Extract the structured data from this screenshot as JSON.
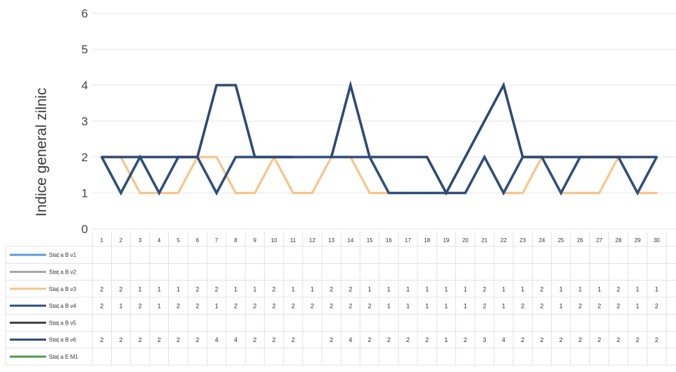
{
  "chart_data": {
    "type": "line",
    "ylabel": "Indice general zilnic",
    "ylim": [
      0,
      6
    ],
    "yticks": [
      0,
      1,
      2,
      3,
      4,
      5,
      6
    ],
    "grid": true,
    "legend": "data-table-left",
    "x": [
      "1",
      "2",
      "3",
      "4",
      "5",
      "6",
      "7",
      "8",
      "9",
      "10",
      "11",
      "12",
      "13",
      "14",
      "15",
      "16",
      "17",
      "18",
      "19",
      "20",
      "21",
      "22",
      "23",
      "24",
      "25",
      "26",
      "27",
      "28",
      "29",
      "30"
    ],
    "series": [
      {
        "name": "Staț a B v1",
        "color": "#5b9bd5",
        "values": [
          null,
          null,
          null,
          null,
          null,
          null,
          null,
          null,
          null,
          null,
          null,
          null,
          null,
          null,
          null,
          null,
          null,
          null,
          null,
          null,
          null,
          null,
          null,
          null,
          null,
          null,
          null,
          null,
          null,
          null
        ]
      },
      {
        "name": "Staț a B v2",
        "color": "#a5a5a5",
        "values": [
          null,
          null,
          null,
          null,
          null,
          null,
          null,
          null,
          null,
          null,
          null,
          null,
          null,
          null,
          null,
          null,
          null,
          null,
          null,
          null,
          null,
          null,
          null,
          null,
          null,
          null,
          null,
          null,
          null,
          null
        ]
      },
      {
        "name": "Staț a B v3",
        "color": "#f7c58a",
        "values": [
          2,
          2,
          1,
          1,
          1,
          2,
          2,
          1,
          1,
          2,
          1,
          1,
          2,
          2,
          1,
          1,
          1,
          1,
          1,
          1,
          2,
          1,
          1,
          2,
          1,
          1,
          1,
          2,
          1,
          1
        ]
      },
      {
        "name": "Staț a B v4",
        "color": "#2f4f7a",
        "values": [
          2,
          1,
          2,
          1,
          2,
          2,
          1,
          2,
          2,
          2,
          2,
          2,
          2,
          2,
          2,
          1,
          1,
          1,
          1,
          1,
          2,
          1,
          2,
          2,
          1,
          2,
          2,
          2,
          1,
          2
        ]
      },
      {
        "name": "Staț a B v5",
        "color": "#404040",
        "values": [
          null,
          null,
          null,
          null,
          null,
          null,
          null,
          null,
          null,
          null,
          null,
          null,
          null,
          null,
          null,
          null,
          null,
          null,
          null,
          null,
          null,
          null,
          null,
          null,
          null,
          null,
          null,
          null,
          null,
          null
        ]
      },
      {
        "name": "Staț a B v6",
        "color": "#2e4a73",
        "values": [
          2,
          2,
          2,
          2,
          2,
          2,
          4,
          4,
          2,
          2,
          2,
          null,
          2,
          4,
          2,
          2,
          2,
          2,
          1,
          2,
          3,
          4,
          2,
          2,
          2,
          2,
          2,
          2,
          2,
          2
        ]
      },
      {
        "name": "Staț a E M1",
        "color": "#4e9a4a",
        "values": [
          null,
          null,
          null,
          null,
          null,
          null,
          null,
          null,
          null,
          null,
          null,
          null,
          null,
          null,
          null,
          null,
          null,
          null,
          null,
          null,
          null,
          null,
          null,
          null,
          null,
          null,
          null,
          null,
          null,
          null
        ]
      }
    ]
  }
}
